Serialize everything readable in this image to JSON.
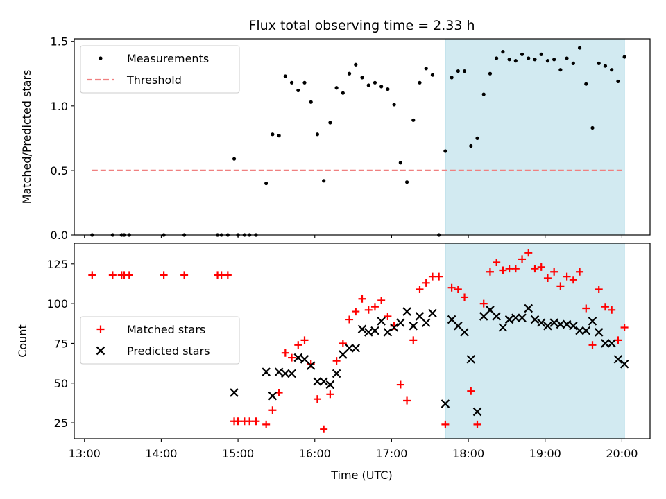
{
  "chart_data": {
    "type": "scatter",
    "title": "Flux total observing time = 2.33 h",
    "xlabel": "Time (UTC)",
    "xlim": [
      "12:52",
      "20:22"
    ],
    "x_tick_labels": [
      "13:00",
      "14:00",
      "15:00",
      "16:00",
      "17:00",
      "18:00",
      "19:00",
      "20:00"
    ],
    "highlight_span": {
      "start": "17:42",
      "end": "20:02",
      "color": "#add8e6"
    },
    "panels": [
      {
        "name": "top",
        "ylabel": "Matched/Predicted stars",
        "ylim": [
          0,
          1.52
        ],
        "y_tick_labels": [
          "0.0",
          "0.5",
          "1.0",
          "1.5"
        ],
        "legend_position": "upper left",
        "series": [
          {
            "name": "Measurements",
            "marker": "dot",
            "color": "#000000",
            "points": [
              [
                "13:06",
                0
              ],
              [
                "13:22",
                0
              ],
              [
                "13:29",
                0
              ],
              [
                "13:31",
                0
              ],
              [
                "13:35",
                0
              ],
              [
                "14:02",
                0
              ],
              [
                "14:18",
                0
              ],
              [
                "14:44",
                0
              ],
              [
                "14:47",
                0
              ],
              [
                "14:52",
                0
              ],
              [
                "14:57",
                0.59
              ],
              [
                "15:00",
                0
              ],
              [
                "15:05",
                0
              ],
              [
                "15:09",
                0
              ],
              [
                "15:14",
                0
              ],
              [
                "15:22",
                0.4
              ],
              [
                "15:27",
                0.78
              ],
              [
                "15:32",
                0.77
              ],
              [
                "15:37",
                1.23
              ],
              [
                "15:42",
                1.18
              ],
              [
                "15:47",
                1.12
              ],
              [
                "15:52",
                1.18
              ],
              [
                "15:57",
                1.03
              ],
              [
                "16:02",
                0.78
              ],
              [
                "16:07",
                0.42
              ],
              [
                "16:12",
                0.87
              ],
              [
                "16:17",
                1.14
              ],
              [
                "16:22",
                1.1
              ],
              [
                "16:27",
                1.25
              ],
              [
                "16:32",
                1.32
              ],
              [
                "16:37",
                1.22
              ],
              [
                "16:42",
                1.16
              ],
              [
                "16:47",
                1.18
              ],
              [
                "16:52",
                1.15
              ],
              [
                "16:57",
                1.13
              ],
              [
                "17:02",
                1.01
              ],
              [
                "17:07",
                0.56
              ],
              [
                "17:12",
                0.41
              ],
              [
                "17:17",
                0.89
              ],
              [
                "17:22",
                1.18
              ],
              [
                "17:27",
                1.29
              ],
              [
                "17:32",
                1.24
              ],
              [
                "17:37",
                0
              ],
              [
                "17:42",
                0.65
              ],
              [
                "17:47",
                1.22
              ],
              [
                "17:52",
                1.27
              ],
              [
                "17:57",
                1.27
              ],
              [
                "18:02",
                0.69
              ],
              [
                "18:07",
                0.75
              ],
              [
                "18:12",
                1.09
              ],
              [
                "18:17",
                1.25
              ],
              [
                "18:22",
                1.37
              ],
              [
                "18:27",
                1.42
              ],
              [
                "18:32",
                1.36
              ],
              [
                "18:37",
                1.35
              ],
              [
                "18:42",
                1.4
              ],
              [
                "18:47",
                1.37
              ],
              [
                "18:52",
                1.36
              ],
              [
                "18:57",
                1.4
              ],
              [
                "19:02",
                1.35
              ],
              [
                "19:07",
                1.36
              ],
              [
                "19:12",
                1.28
              ],
              [
                "19:17",
                1.37
              ],
              [
                "19:22",
                1.33
              ],
              [
                "19:27",
                1.45
              ],
              [
                "19:32",
                1.17
              ],
              [
                "19:37",
                0.83
              ],
              [
                "19:42",
                1.33
              ],
              [
                "19:47",
                1.31
              ],
              [
                "19:52",
                1.28
              ],
              [
                "19:57",
                1.19
              ],
              [
                "20:02",
                1.38
              ]
            ]
          },
          {
            "name": "Threshold",
            "marker": "dashed-line",
            "color": "#f08080",
            "points": [
              [
                "13:06",
                0.5
              ],
              [
                "20:02",
                0.5
              ]
            ]
          }
        ]
      },
      {
        "name": "bottom",
        "ylabel": "Count",
        "ylim": [
          15,
          138
        ],
        "y_tick_labels": [
          "25",
          "50",
          "75",
          "100",
          "125"
        ],
        "legend_position": "center left",
        "series": [
          {
            "name": "Matched stars",
            "marker": "plus",
            "color": "#ff0000",
            "points": [
              [
                "13:06",
                118
              ],
              [
                "13:22",
                118
              ],
              [
                "13:29",
                118
              ],
              [
                "13:31",
                118
              ],
              [
                "13:35",
                118
              ],
              [
                "14:02",
                118
              ],
              [
                "14:18",
                118
              ],
              [
                "14:44",
                118
              ],
              [
                "14:47",
                118
              ],
              [
                "14:52",
                118
              ],
              [
                "14:57",
                26
              ],
              [
                "15:00",
                26
              ],
              [
                "15:05",
                26
              ],
              [
                "15:09",
                26
              ],
              [
                "15:14",
                26
              ],
              [
                "15:22",
                24
              ],
              [
                "15:27",
                33
              ],
              [
                "15:32",
                44
              ],
              [
                "15:37",
                69
              ],
              [
                "15:42",
                66
              ],
              [
                "15:47",
                74
              ],
              [
                "15:52",
                77
              ],
              [
                "15:57",
                62
              ],
              [
                "16:02",
                40
              ],
              [
                "16:07",
                21
              ],
              [
                "16:12",
                43
              ],
              [
                "16:17",
                64
              ],
              [
                "16:22",
                75
              ],
              [
                "16:27",
                90
              ],
              [
                "16:32",
                95
              ],
              [
                "16:37",
                103
              ],
              [
                "16:42",
                96
              ],
              [
                "16:47",
                98
              ],
              [
                "16:52",
                102
              ],
              [
                "16:57",
                92
              ],
              [
                "17:02",
                86
              ],
              [
                "17:07",
                49
              ],
              [
                "17:12",
                39
              ],
              [
                "17:17",
                77
              ],
              [
                "17:22",
                109
              ],
              [
                "17:27",
                113
              ],
              [
                "17:32",
                117
              ],
              [
                "17:37",
                117
              ],
              [
                "17:42",
                24
              ],
              [
                "17:47",
                110
              ],
              [
                "17:52",
                109
              ],
              [
                "17:57",
                104
              ],
              [
                "18:02",
                45
              ],
              [
                "18:07",
                24
              ],
              [
                "18:12",
                100
              ],
              [
                "18:17",
                120
              ],
              [
                "18:22",
                126
              ],
              [
                "18:27",
                121
              ],
              [
                "18:32",
                122
              ],
              [
                "18:37",
                122
              ],
              [
                "18:42",
                128
              ],
              [
                "18:47",
                132
              ],
              [
                "18:52",
                122
              ],
              [
                "18:57",
                123
              ],
              [
                "19:02",
                116
              ],
              [
                "19:07",
                120
              ],
              [
                "19:12",
                111
              ],
              [
                "19:17",
                117
              ],
              [
                "19:22",
                115
              ],
              [
                "19:27",
                120
              ],
              [
                "19:32",
                97
              ],
              [
                "19:37",
                74
              ],
              [
                "19:42",
                109
              ],
              [
                "19:47",
                98
              ],
              [
                "19:52",
                96
              ],
              [
                "19:57",
                77
              ],
              [
                "20:02",
                85
              ]
            ]
          },
          {
            "name": "Predicted stars",
            "marker": "x",
            "color": "#000000",
            "points": [
              [
                "14:57",
                44
              ],
              [
                "15:22",
                57
              ],
              [
                "15:27",
                42
              ],
              [
                "15:32",
                57
              ],
              [
                "15:37",
                56
              ],
              [
                "15:42",
                56
              ],
              [
                "15:47",
                66
              ],
              [
                "15:52",
                65
              ],
              [
                "15:57",
                61
              ],
              [
                "16:02",
                51
              ],
              [
                "16:07",
                51
              ],
              [
                "16:12",
                49
              ],
              [
                "16:17",
                56
              ],
              [
                "16:22",
                68
              ],
              [
                "16:27",
                72
              ],
              [
                "16:32",
                72
              ],
              [
                "16:37",
                84
              ],
              [
                "16:42",
                82
              ],
              [
                "16:47",
                83
              ],
              [
                "16:52",
                89
              ],
              [
                "16:57",
                82
              ],
              [
                "17:02",
                85
              ],
              [
                "17:07",
                88
              ],
              [
                "17:12",
                95
              ],
              [
                "17:17",
                86
              ],
              [
                "17:22",
                92
              ],
              [
                "17:27",
                88
              ],
              [
                "17:32",
                94
              ],
              [
                "17:42",
                37
              ],
              [
                "17:47",
                90
              ],
              [
                "17:52",
                86
              ],
              [
                "17:57",
                82
              ],
              [
                "18:02",
                65
              ],
              [
                "18:07",
                32
              ],
              [
                "18:12",
                92
              ],
              [
                "18:17",
                96
              ],
              [
                "18:22",
                92
              ],
              [
                "18:27",
                85
              ],
              [
                "18:32",
                90
              ],
              [
                "18:37",
                91
              ],
              [
                "18:42",
                91
              ],
              [
                "18:47",
                97
              ],
              [
                "18:52",
                90
              ],
              [
                "18:57",
                88
              ],
              [
                "19:02",
                86
              ],
              [
                "19:07",
                88
              ],
              [
                "19:12",
                87
              ],
              [
                "19:17",
                87
              ],
              [
                "19:22",
                86
              ],
              [
                "19:27",
                83
              ],
              [
                "19:32",
                83
              ],
              [
                "19:37",
                89
              ],
              [
                "19:42",
                82
              ],
              [
                "19:47",
                75
              ],
              [
                "19:52",
                75
              ],
              [
                "19:57",
                65
              ],
              [
                "20:02",
                62
              ]
            ]
          }
        ]
      }
    ]
  }
}
